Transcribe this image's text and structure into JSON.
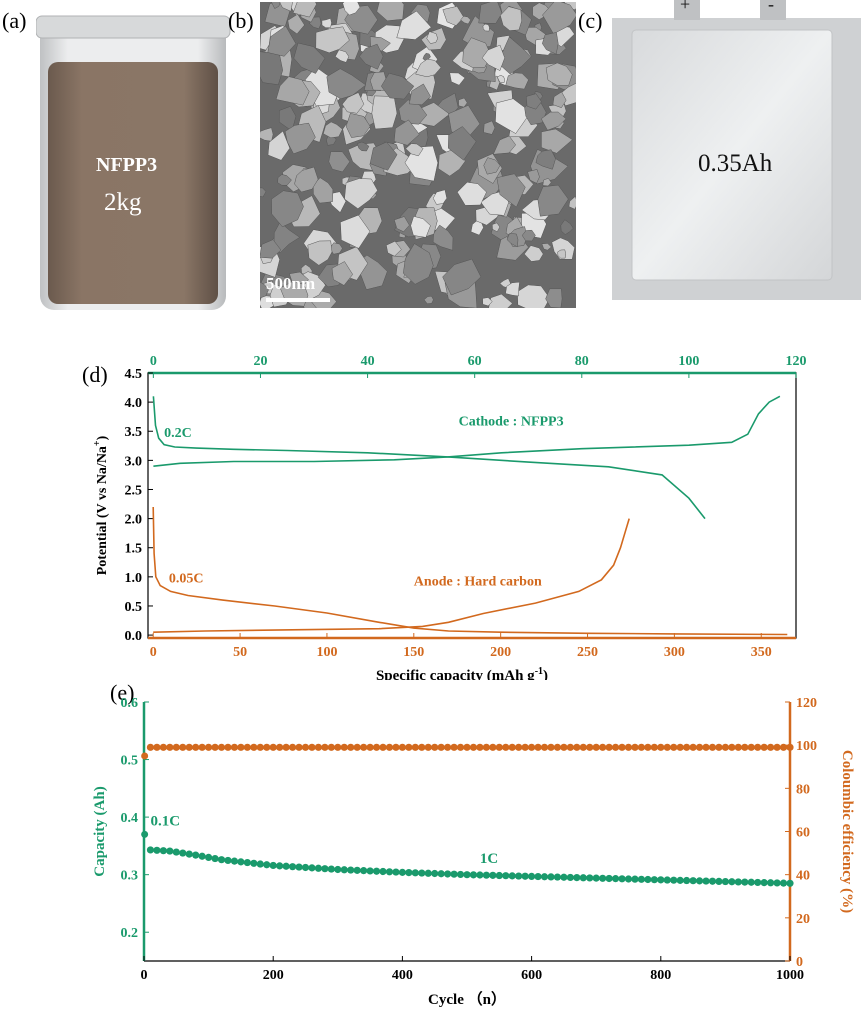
{
  "colors": {
    "green": "#1a9a6c",
    "orange": "#d2691e",
    "axis": "#000000"
  },
  "panels": {
    "a": {
      "label": "(a)",
      "line1": "NFPP3",
      "line2": "2kg"
    },
    "b": {
      "label": "(b)",
      "scale": "500nm"
    },
    "c": {
      "label": "(c)",
      "text": "0.35Ah",
      "plus": "+",
      "minus": "-"
    },
    "d": {
      "label": "(d)"
    },
    "e": {
      "label": "(e)"
    }
  },
  "chart_data": [
    {
      "type": "line",
      "panel": "d",
      "xlabel": "Specific capacity (mAh g",
      "xlabel_sup": "-1",
      "xlabel_end": ")",
      "ylabel": "Potential (V vs Na/Na",
      "ylabel_sup": "+",
      "ylabel_end": ")",
      "xlim_bottom": [
        -3,
        370
      ],
      "xticks_bottom": [
        0,
        50,
        100,
        150,
        200,
        250,
        300,
        350
      ],
      "xlim_top": [
        -1,
        120
      ],
      "xticks_top": [
        0,
        20,
        40,
        60,
        80,
        100,
        120
      ],
      "ylim": [
        -0.05,
        4.5
      ],
      "yticks": [
        "0.0",
        "0.5",
        "1.0",
        "1.5",
        "2.0",
        "2.5",
        "3.0",
        "3.5",
        "4.0",
        "4.5"
      ],
      "annotations": [
        {
          "text": "Cathode : NFPP3",
          "color": "green",
          "x": 57,
          "y": 3.6,
          "axis": "top"
        },
        {
          "text": "0.2C",
          "color": "green",
          "x": 2,
          "y": 3.4,
          "axis": "top"
        },
        {
          "text": "Anode :   Hard carbon",
          "color": "orange",
          "x": 150,
          "y": 0.85,
          "axis": "bottom"
        },
        {
          "text": "0.05C",
          "color": "orange",
          "x": 9,
          "y": 0.9,
          "axis": "bottom"
        }
      ],
      "series": [
        {
          "color": "green",
          "axis": "top",
          "x": [
            0,
            0.4,
            1,
            2,
            4,
            8,
            15,
            25,
            40,
            55,
            70,
            85,
            95,
            100,
            103
          ],
          "y": [
            4.1,
            3.6,
            3.38,
            3.27,
            3.23,
            3.21,
            3.19,
            3.17,
            3.13,
            3.06,
            2.97,
            2.89,
            2.75,
            2.35,
            2.0
          ]
        },
        {
          "color": "green",
          "axis": "top",
          "x": [
            0,
            5,
            15,
            30,
            45,
            55,
            65,
            80,
            100,
            108,
            111,
            113,
            115,
            117
          ],
          "y": [
            2.9,
            2.95,
            2.98,
            2.98,
            3.01,
            3.06,
            3.13,
            3.2,
            3.26,
            3.31,
            3.45,
            3.8,
            4.0,
            4.1
          ]
        },
        {
          "color": "orange",
          "axis": "bottom",
          "x": [
            0,
            0.5,
            1.5,
            4,
            10,
            20,
            40,
            70,
            100,
            130,
            150,
            170,
            200,
            250,
            300,
            365
          ],
          "y": [
            2.2,
            1.4,
            1.0,
            0.85,
            0.75,
            0.68,
            0.6,
            0.5,
            0.38,
            0.22,
            0.12,
            0.07,
            0.05,
            0.03,
            0.02,
            0.01
          ]
        },
        {
          "color": "orange",
          "axis": "bottom",
          "x": [
            0,
            30,
            80,
            130,
            155,
            170,
            190,
            220,
            245,
            258,
            265,
            269,
            272,
            274
          ],
          "y": [
            0.05,
            0.07,
            0.09,
            0.11,
            0.15,
            0.22,
            0.37,
            0.55,
            0.75,
            0.95,
            1.2,
            1.5,
            1.8,
            2.0
          ]
        }
      ]
    },
    {
      "type": "scatter",
      "panel": "e",
      "xlabel": "Cycle （n）",
      "ylabel_left": "Capacity (Ah)",
      "ylabel_right": "Coloumbic efficiency (%)",
      "xlim": [
        0,
        1000
      ],
      "xticks": [
        "0",
        "200",
        "400",
        "600",
        "800",
        "1000"
      ],
      "ylim_left": [
        0.15,
        0.6
      ],
      "yticks_left": [
        "0.2",
        "0.3",
        "0.4",
        "0.5",
        "0.6"
      ],
      "ylim_right": [
        0,
        120
      ],
      "yticks_right": [
        "0",
        "20",
        "40",
        "60",
        "80",
        "100",
        "120"
      ],
      "annotations": [
        {
          "text": "0.1C",
          "color": "green",
          "x": 10,
          "y": 0.385
        },
        {
          "text": "1C",
          "color": "green",
          "x": 520,
          "y": 0.32
        }
      ],
      "series": [
        {
          "name": "Capacity",
          "color": "green",
          "axis": "left",
          "initial": [
            [
              1,
              0.37
            ]
          ],
          "curve_x": [
            10,
            40,
            80,
            120,
            200,
            300,
            400,
            500,
            600,
            700,
            800,
            900,
            1000
          ],
          "curve_y": [
            0.343,
            0.341,
            0.334,
            0.326,
            0.316,
            0.309,
            0.304,
            0.3,
            0.297,
            0.294,
            0.291,
            0.288,
            0.285
          ]
        },
        {
          "name": "Coulombic efficiency",
          "color": "orange",
          "axis": "right",
          "initial": [
            [
              1,
              95
            ]
          ],
          "curve_x": [
            10,
            1000
          ],
          "curve_y": [
            99,
            99
          ]
        }
      ]
    }
  ]
}
